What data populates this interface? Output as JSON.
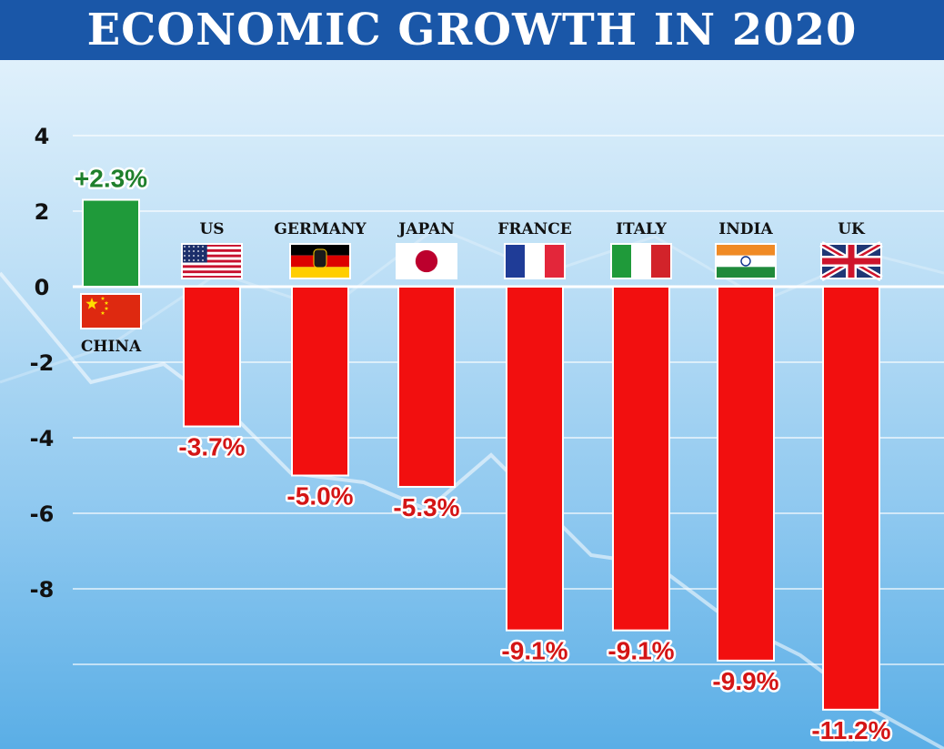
{
  "chart_data": {
    "type": "bar",
    "title": "ECONOMIC GROWTH IN 2020",
    "xlabel": "",
    "ylabel": "",
    "ylim": [
      -12,
      4
    ],
    "yticks": [
      4,
      2,
      0,
      -2,
      -4,
      -6,
      -8
    ],
    "grid": true,
    "categories": [
      "CHINA",
      "US",
      "GERMANY",
      "JAPAN",
      "FRANCE",
      "ITALY",
      "INDIA",
      "UK"
    ],
    "values": [
      2.3,
      -3.7,
      -5.0,
      -5.3,
      -9.1,
      -9.1,
      -9.9,
      -11.2
    ],
    "data_labels": [
      "+2.3%",
      "-3.7%",
      "-5.0%",
      "-5.3%",
      "-9.1%",
      "-9.1%",
      "-9.9%",
      "-11.2%"
    ],
    "flags": [
      "china-flag",
      "us-flag",
      "germany-flag",
      "japan-flag",
      "france-flag",
      "italy-flag",
      "india-flag",
      "uk-flag"
    ]
  },
  "colors": {
    "title_bar": "#1a57a8",
    "title_text": "#ffffff",
    "positive_bar": "#1f9a3a",
    "negative_bar": "#f20f0f",
    "positive_label": "#1f7f2c",
    "negative_label": "#d41515",
    "gridline": "#ffffff"
  }
}
